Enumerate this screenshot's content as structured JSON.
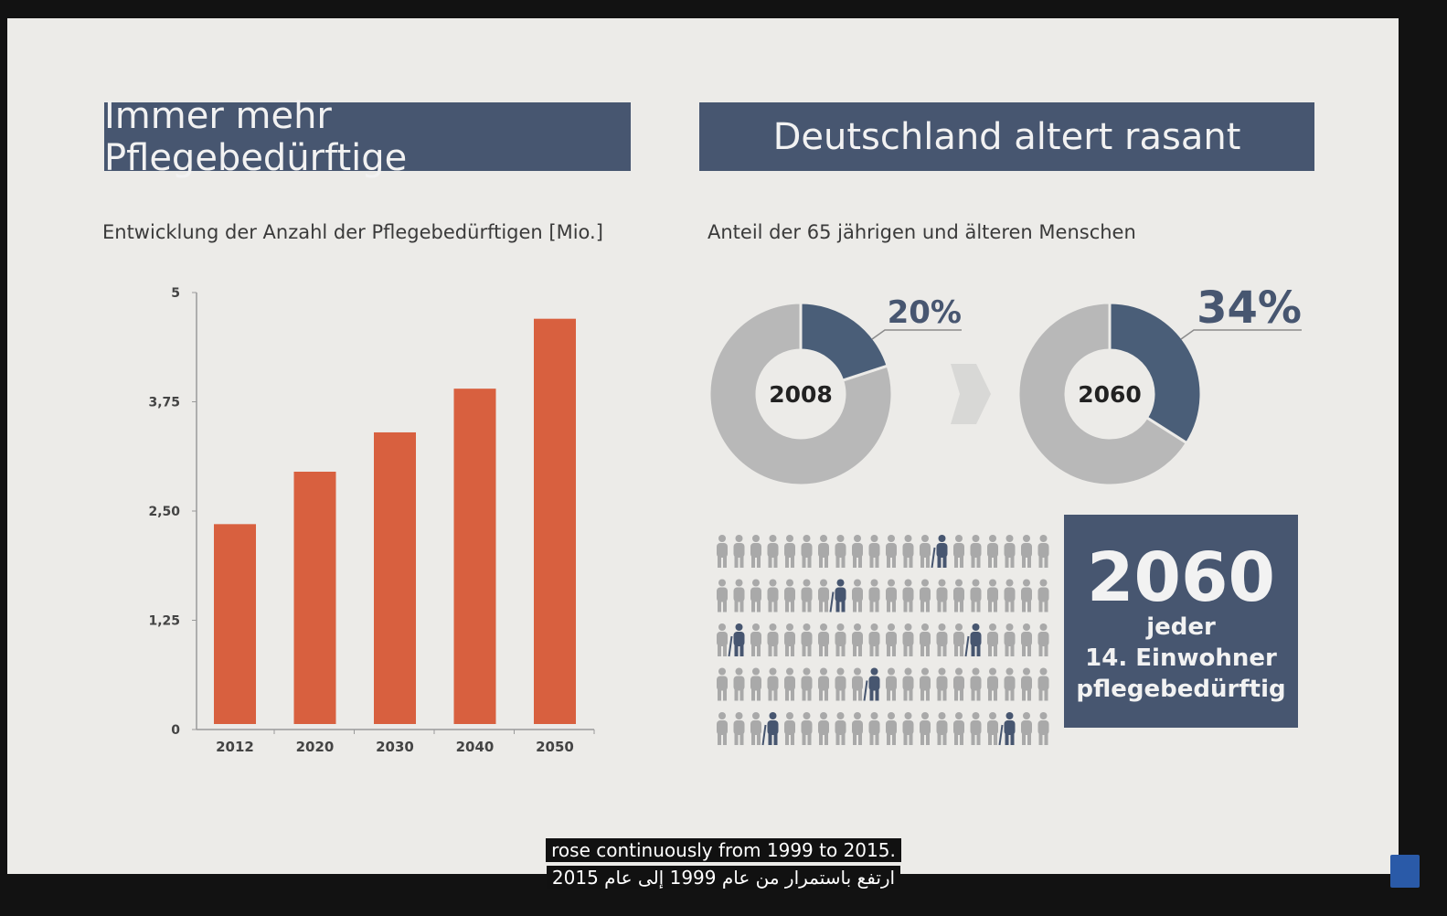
{
  "left": {
    "banner": "Immer mehr Pflegebedürftige",
    "subtitle": "Entwicklung der Anzahl der Pflegebedürftigen [Mio.]"
  },
  "right": {
    "banner": "Deutschland altert rasant",
    "subtitle": "Anteil der 65 jährigen und älteren Menschen",
    "donuts": [
      {
        "year": "2008",
        "percent_label": "20%",
        "share": 0.2
      },
      {
        "year": "2060",
        "percent_label": "34%",
        "share": 0.34
      }
    ],
    "stat": {
      "year": "2060",
      "line1": "jeder",
      "line2": "14. Einwohner",
      "line3": "pflegebedürftig"
    }
  },
  "people_grid": {
    "rows": 5,
    "cols": 20,
    "highlighted": [
      [
        0,
        13
      ],
      [
        1,
        7
      ],
      [
        2,
        1
      ],
      [
        2,
        15
      ],
      [
        3,
        9
      ],
      [
        4,
        3
      ],
      [
        4,
        17
      ]
    ]
  },
  "colors": {
    "banner": "#475670",
    "bar": "#d8603f",
    "donut_fg": "#4a5e78",
    "donut_bg": "#b8b8b8",
    "person": "#a9a9a9",
    "person_highlight": "#475670"
  },
  "chart_data": {
    "type": "bar",
    "categories": [
      "2012",
      "2020",
      "2030",
      "2040",
      "2050"
    ],
    "values": [
      2.35,
      2.95,
      3.4,
      3.9,
      4.7
    ],
    "title": "Entwicklung der Anzahl der Pflegebedürftigen [Mio.]",
    "ylim": [
      0,
      5
    ],
    "yticks": [
      0,
      1.25,
      2.5,
      3.75,
      5
    ],
    "ytick_labels": [
      "0",
      "1,25",
      "2,50",
      "3,75",
      "5"
    ]
  },
  "captions": {
    "en": "rose continuously from 1999 to 2015.",
    "ar": "ارتفع باستمرار من عام 1999 إلى عام 2015"
  }
}
